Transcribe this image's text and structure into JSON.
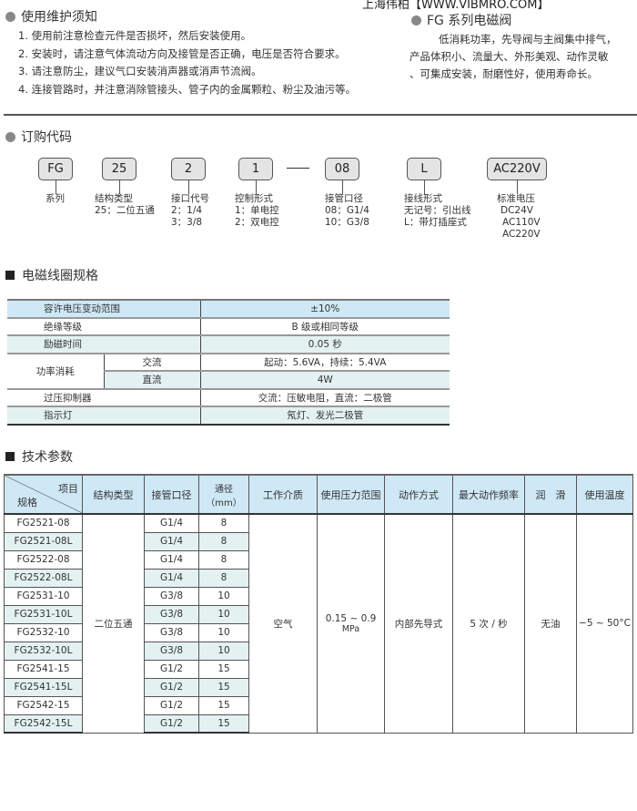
{
  "watermark": "上海伟柏【WWW.VIBMRO.COM】",
  "notice": {
    "title": "使用维护须知",
    "items": [
      "1. 使用前注意检查元件是否损坏，然后安装使用。",
      "2. 安装时，请注意气体流动方向及接管是否正确，电压是否符合要求。",
      "3. 请注意防尘，建议气口安装消声器或消声节流阀。",
      "4. 连接管路时，并注意消除管接头、管子内的金属颗粒、粉尘及油污等。"
    ]
  },
  "series": {
    "title": "FG 系列电磁阀",
    "lines": [
      "低消耗功率，先导阀与主阀集中排气，",
      "产品体积小、流量大、外形美观、动作灵敏",
      "、可集成安装，耐磨性好，使用寿命长。"
    ]
  },
  "order": {
    "title": "订购代码",
    "codes": [
      {
        "code": "FG",
        "lines": [
          "系列"
        ]
      },
      {
        "code": "25",
        "lines": [
          "结构类型",
          "25：二位五通"
        ]
      },
      {
        "code": "2",
        "lines": [
          "接口代号",
          "2：1/4",
          "3：3/8"
        ]
      },
      {
        "code": "1",
        "lines": [
          "控制形式",
          "1：单电控",
          "2：双电控"
        ]
      },
      {
        "code": "08",
        "lines": [
          "接管口径",
          "08：G1/4",
          "10：G3/8"
        ]
      },
      {
        "code": "L",
        "lines": [
          "接线形式",
          "无记号：引出线",
          "L：带灯插座式"
        ]
      },
      {
        "code": "AC220V",
        "lines": [
          "标准电压",
          "DC24V",
          "AC110V",
          "AC220V"
        ]
      }
    ],
    "dash": "—"
  },
  "coil": {
    "title": "电磁线圈规格",
    "rows": [
      [
        "容许电压变动范围",
        "±10%"
      ],
      [
        "绝缘等级",
        "B 级或相同等级"
      ],
      [
        "励磁时间",
        "0.05 秒"
      ],
      [
        "功率消耗",
        "交流",
        "起动：5.6VA，持续：5.4VA"
      ],
      [
        "直流",
        "4W"
      ],
      [
        "过压抑制器",
        "交流：压敏电阻，直流：二极管"
      ],
      [
        "指示灯",
        "氖灯、发光二极管"
      ]
    ]
  },
  "tech": {
    "title": "技术参数",
    "corner_top": "项目",
    "corner_bottom": "规格",
    "headers": [
      "结构类型",
      "接管口径",
      "通径（mm）",
      "工作介质",
      "使用压力范围",
      "动作方式",
      "最大动作频率",
      "润　滑",
      "使用温度"
    ],
    "rows": [
      [
        "FG2521-08",
        "G1/4",
        "8"
      ],
      [
        "FG2521-08L",
        "G1/4",
        "8"
      ],
      [
        "FG2522-08",
        "G1/4",
        "8"
      ],
      [
        "FG2522-08L",
        "G1/4",
        "8"
      ],
      [
        "FG2531-10",
        "G3/8",
        "10"
      ],
      [
        "FG2531-10L",
        "G3/8",
        "10"
      ],
      [
        "FG2532-10",
        "G3/8",
        "10"
      ],
      [
        "FG2532-10L",
        "G3/8",
        "10"
      ],
      [
        "FG2541-15",
        "G1/2",
        "15"
      ],
      [
        "FG2541-15L",
        "G1/2",
        "15"
      ],
      [
        "FG2542-15",
        "G1/2",
        "15"
      ],
      [
        "FG2542-15L",
        "G1/2",
        "15"
      ]
    ],
    "merged": {
      "structure": "二位五通",
      "medium": "空气",
      "pressure": "0.15 ~ 0.9",
      "pressure_unit": "MPa",
      "action": "内部先导式",
      "frequency": "5 次 / 秒",
      "lubrication": "无油",
      "temperature": "−5 ~ 50°C"
    }
  }
}
